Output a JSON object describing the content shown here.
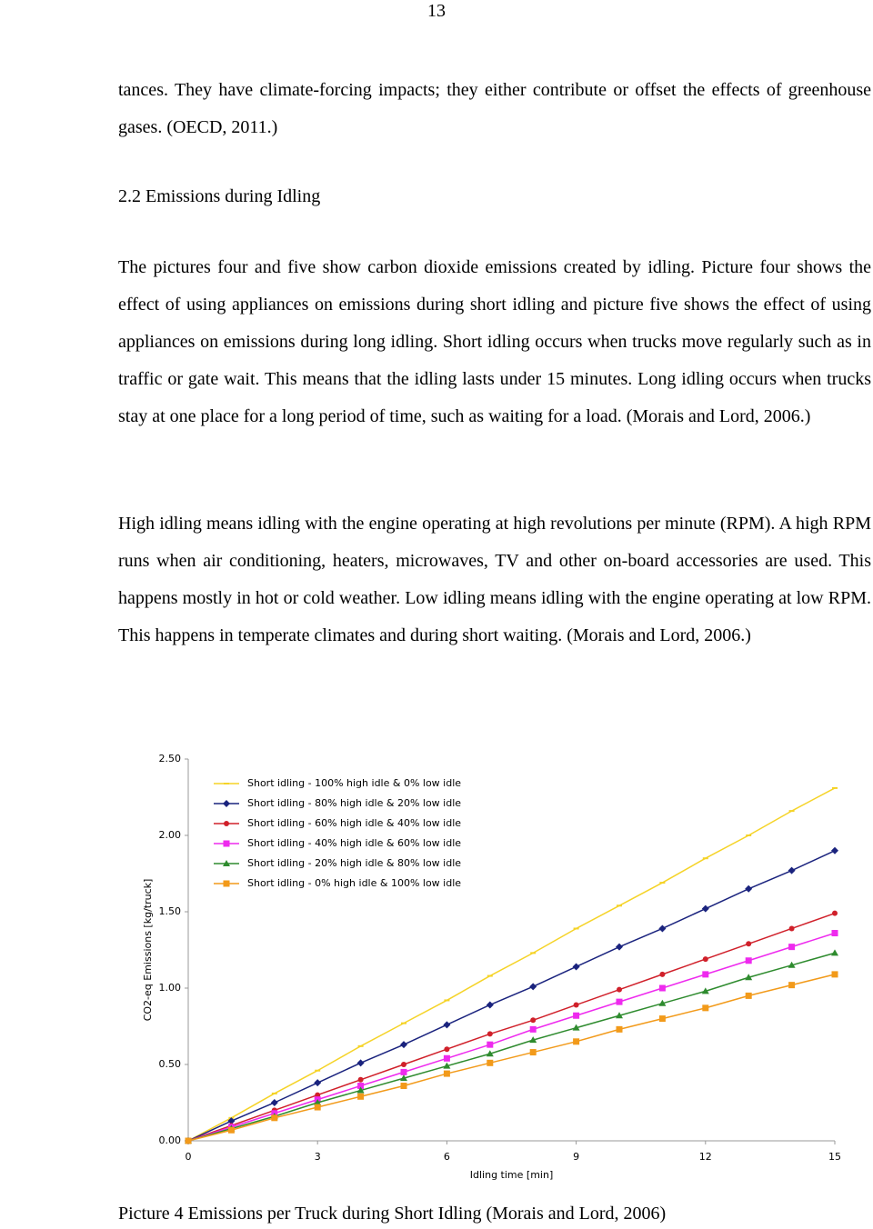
{
  "page_number": "13",
  "paragraphs_top": "tances. They have climate-forcing impacts; they either contribute or offset the effects of greenhouse gases. (OECD, 2011.)",
  "heading": "2.2 Emissions during Idling",
  "paragraphs": [
    "The pictures four and five show carbon dioxide emissions created by idling. Picture four shows the effect of using appliances on emissions during short idling and picture five shows the effect of using appliances on emissions during long idling. Short idling occurs when trucks move regularly such as in traffic or gate wait. This means that the idling lasts under 15 minutes. Long idling occurs when trucks stay at one place for a long period of time, such as waiting for a load. (Morais and Lord, 2006.)",
    "High idling means idling with the engine operating at high revolutions per minute (RPM). A high RPM runs when air conditioning, heaters, microwaves, TV and other on-board accessories are used. This happens mostly in hot or cold weather. Low idling means idling with the engine operating at low RPM. This happens in temperate climates and during short waiting. (Morais and Lord, 2006.)"
  ],
  "chart_data": {
    "type": "line",
    "x_label": "Idling time [min]",
    "y_label": "CO2-eq Emissions [kg/truck]",
    "x": [
      0,
      1,
      2,
      3,
      4,
      5,
      6,
      7,
      8,
      9,
      10,
      11,
      12,
      13,
      14,
      15
    ],
    "xlim": [
      0,
      15
    ],
    "xticks": [
      0,
      3,
      6,
      9,
      12,
      15
    ],
    "ylim": [
      0,
      2.5
    ],
    "yticks": [
      {
        "value": 0,
        "label": "0.00"
      },
      {
        "value": 0.5,
        "label": "0.50"
      },
      {
        "value": 1,
        "label": "1.00"
      },
      {
        "value": 1.5,
        "label": "1.50"
      },
      {
        "value": 2,
        "label": "2.00"
      },
      {
        "value": 2.5,
        "label": "2.50"
      }
    ],
    "legend": "upper left",
    "series": [
      {
        "name": "Short idling - 100% high idle & 0% low idle",
        "color": "#f5d327",
        "marker": "dash",
        "values": [
          0,
          0.15,
          0.31,
          0.46,
          0.62,
          0.77,
          0.92,
          1.08,
          1.23,
          1.39,
          1.54,
          1.69,
          1.85,
          2.0,
          2.16,
          2.31
        ]
      },
      {
        "name": "Short idling - 80% high idle & 20% low idle",
        "color": "#1a237e",
        "marker": "diamond",
        "values": [
          0,
          0.13,
          0.25,
          0.38,
          0.51,
          0.63,
          0.76,
          0.89,
          1.01,
          1.14,
          1.27,
          1.39,
          1.52,
          1.65,
          1.77,
          1.9
        ]
      },
      {
        "name": "Short idling - 60% high idle & 40% low idle",
        "color": "#d0202a",
        "marker": "circle",
        "values": [
          0,
          0.1,
          0.2,
          0.3,
          0.4,
          0.5,
          0.6,
          0.7,
          0.79,
          0.89,
          0.99,
          1.09,
          1.19,
          1.29,
          1.39,
          1.49
        ]
      },
      {
        "name": "Short idling - 40% high idle & 60% low idle",
        "color": "#ee2aee",
        "marker": "square",
        "values": [
          0,
          0.09,
          0.18,
          0.27,
          0.36,
          0.45,
          0.54,
          0.63,
          0.73,
          0.82,
          0.91,
          1.0,
          1.09,
          1.18,
          1.27,
          1.36
        ]
      },
      {
        "name": "Short idling - 20% high idle & 80% low idle",
        "color": "#2e8b2e",
        "marker": "triangle",
        "values": [
          0,
          0.08,
          0.16,
          0.25,
          0.33,
          0.41,
          0.49,
          0.57,
          0.66,
          0.74,
          0.82,
          0.9,
          0.98,
          1.07,
          1.15,
          1.23
        ]
      },
      {
        "name": "Short idling - 0% high idle & 100% low idle",
        "color": "#f29a1a",
        "marker": "square",
        "values": [
          0,
          0.07,
          0.15,
          0.22,
          0.29,
          0.36,
          0.44,
          0.51,
          0.58,
          0.65,
          0.73,
          0.8,
          0.87,
          0.95,
          1.02,
          1.09
        ]
      }
    ]
  },
  "caption": "Picture 4 Emissions per Truck during Short Idling (Morais and Lord, 2006)"
}
